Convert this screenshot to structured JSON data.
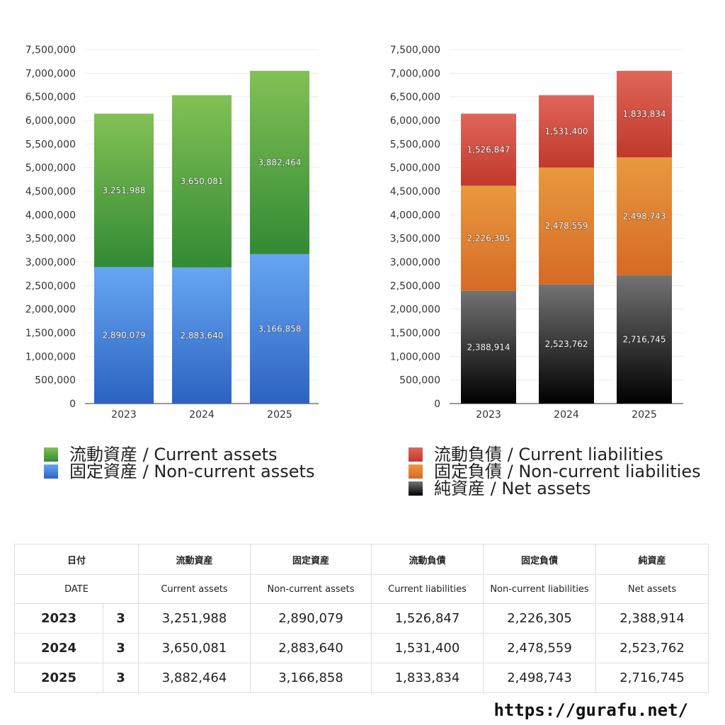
{
  "chart_data": [
    {
      "type": "bar",
      "stacked": true,
      "title": "",
      "xlabel": "",
      "ylabel": "",
      "categories": [
        "2023",
        "2024",
        "2025"
      ],
      "ylim": [
        0,
        7500000
      ],
      "y_ticks": [
        0,
        500000,
        1000000,
        1500000,
        2000000,
        2500000,
        3000000,
        3500000,
        4000000,
        4500000,
        5000000,
        5500000,
        6000000,
        6500000,
        7000000,
        7500000
      ],
      "y_tick_labels": [
        "0",
        "500,000",
        "1,000,000",
        "1,500,000",
        "2,000,000",
        "2,500,000",
        "3,000,000",
        "3,500,000",
        "4,000,000",
        "4,500,000",
        "5,000,000",
        "5,500,000",
        "6,000,000",
        "6,500,000",
        "7,000,000",
        "7,500,000"
      ],
      "series": [
        {
          "name": "固定資産 / Non-current assets",
          "values": [
            2890079,
            2883640,
            3166858
          ],
          "value_labels": [
            "2,890,079",
            "2,883,640",
            "3,166,858"
          ],
          "color_top": "#66a6f2",
          "color_bottom": "#2c63c2"
        },
        {
          "name": "流動資産 / Current assets",
          "values": [
            3251988,
            3650081,
            3882464
          ],
          "value_labels": [
            "3,251,988",
            "3,650,081",
            "3,882,464"
          ],
          "color_top": "#82c155",
          "color_bottom": "#338a35"
        }
      ],
      "legend": {
        "placement": "bottom",
        "items": [
          {
            "label": "流動資産 / Current assets",
            "color_top": "#82c155",
            "color_bottom": "#338a35"
          },
          {
            "label": "固定資産 / Non-current assets",
            "color_top": "#66a6f2",
            "color_bottom": "#2c63c2"
          }
        ]
      }
    },
    {
      "type": "bar",
      "stacked": true,
      "title": "",
      "xlabel": "",
      "ylabel": "",
      "categories": [
        "2023",
        "2024",
        "2025"
      ],
      "ylim": [
        0,
        7500000
      ],
      "y_ticks": [
        0,
        500000,
        1000000,
        1500000,
        2000000,
        2500000,
        3000000,
        3500000,
        4000000,
        4500000,
        5000000,
        5500000,
        6000000,
        6500000,
        7000000,
        7500000
      ],
      "y_tick_labels": [
        "0",
        "500,000",
        "1,000,000",
        "1,500,000",
        "2,000,000",
        "2,500,000",
        "3,000,000",
        "3,500,000",
        "4,000,000",
        "4,500,000",
        "5,000,000",
        "5,500,000",
        "6,000,000",
        "6,500,000",
        "7,000,000",
        "7,500,000"
      ],
      "series": [
        {
          "name": "純資産 / Net assets",
          "values": [
            2388914,
            2523762,
            2716745
          ],
          "value_labels": [
            "2,388,914",
            "2,523,762",
            "2,716,745"
          ],
          "color_top": "#737373",
          "color_bottom": "#000000"
        },
        {
          "name": "固定負債 / Non-current liabilities",
          "values": [
            2226305,
            2478559,
            2498743
          ],
          "value_labels": [
            "2,226,305",
            "2,478,559",
            "2,498,743"
          ],
          "color_top": "#e8993e",
          "color_bottom": "#d66a26"
        },
        {
          "name": "流動負債 / Current liabilities",
          "values": [
            1526847,
            1531400,
            1833834
          ],
          "value_labels": [
            "1,526,847",
            "1,531,400",
            "1,833,834"
          ],
          "color_top": "#e0665a",
          "color_bottom": "#c0392b"
        }
      ],
      "legend": {
        "placement": "bottom",
        "items": [
          {
            "label": "流動負債 / Current liabilities",
            "color_top": "#e0665a",
            "color_bottom": "#c0392b"
          },
          {
            "label": "固定負債 / Non-current liabilities",
            "color_top": "#e8993e",
            "color_bottom": "#d66a26"
          },
          {
            "label": "純資産 / Net assets",
            "color_top": "#737373",
            "color_bottom": "#000000"
          }
        ]
      }
    }
  ],
  "table": {
    "header_ja": [
      "日付",
      "流動資産",
      "固定資産",
      "流動負債",
      "固定負債",
      "純資産"
    ],
    "header_en": [
      "DATE",
      "Current assets",
      "Non-current assets",
      "Current liabilities",
      "Non-current liabilities",
      "Net assets"
    ],
    "rows": [
      {
        "year": "2023",
        "month": "3",
        "values": [
          "3,251,988",
          "2,890,079",
          "1,526,847",
          "2,226,305",
          "2,388,914"
        ]
      },
      {
        "year": "2024",
        "month": "3",
        "values": [
          "3,650,081",
          "2,883,640",
          "1,531,400",
          "2,478,559",
          "2,523,762"
        ]
      },
      {
        "year": "2025",
        "month": "3",
        "values": [
          "3,882,464",
          "3,166,858",
          "1,833,834",
          "2,498,743",
          "2,716,745"
        ]
      }
    ]
  },
  "footer": {
    "url": "https://gurafu.net/"
  }
}
